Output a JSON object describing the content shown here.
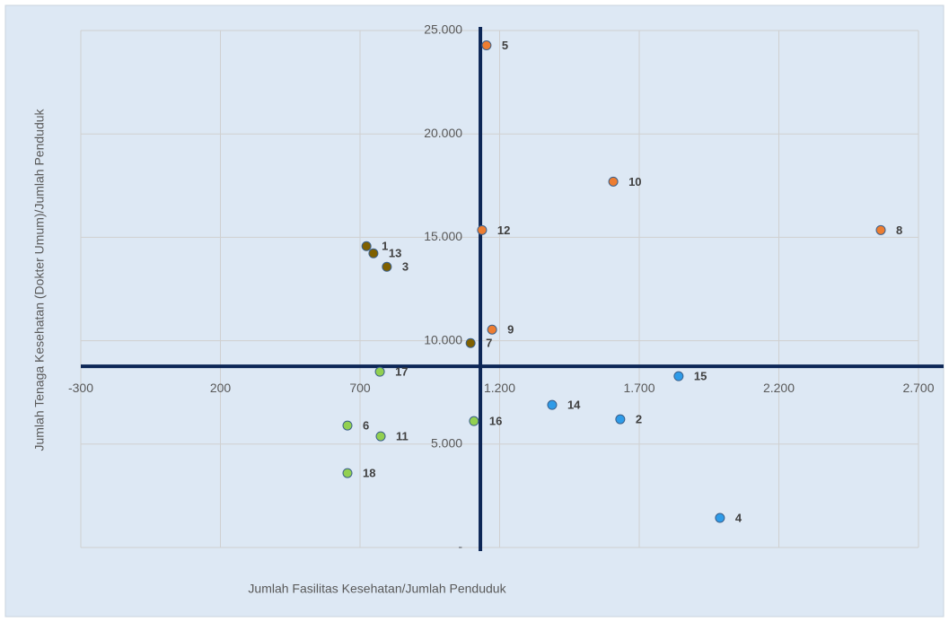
{
  "chart_data": {
    "type": "scatter",
    "x_axis_label": "Jumlah Fasilitas Kesehatan/Jumlah Penduduk",
    "y_axis_label": "Jumlah Tenaga Kesehatan (Dokter Umum)/Jumlah Penduduk",
    "labels": [
      "5",
      "10",
      "12",
      "8",
      "1",
      "13",
      "3",
      "9",
      "7",
      "17",
      "15",
      "14",
      "2",
      "16",
      "6",
      "11",
      "18",
      "4"
    ],
    "x": [
      1153,
      1607,
      1137,
      2565,
      723,
      748,
      796,
      1173,
      1096,
      771,
      1841,
      1388,
      1632,
      1108,
      655,
      774,
      655,
      1989
    ],
    "values": [
      24284,
      17693,
      15351,
      15351,
      14571,
      14224,
      13573,
      10538,
      9887,
      8500,
      8283,
      6895,
      6201,
      6114,
      5898,
      5377,
      3599,
      1431
    ],
    "colors": [
      "#ed7d31",
      "#ed7d31",
      "#ed7d31",
      "#ed7d31",
      "#7f6000",
      "#7f6000",
      "#7f6000",
      "#ed7d31",
      "#7f6000",
      "#92d050",
      "#2e9be8",
      "#2e9be8",
      "#2e9be8",
      "#92d050",
      "#92d050",
      "#92d050",
      "#92d050",
      "#2e9be8"
    ],
    "xlim": [
      -300,
      2700
    ],
    "xticks": [
      -300,
      200,
      700,
      {
        "value": 1200,
        "label": "1.200"
      },
      {
        "value": 1700,
        "label": "1.700"
      },
      {
        "value": 2200,
        "label": "2.200"
      },
      {
        "value": 2700,
        "label": "2.700"
      }
    ],
    "ylim": [
      0,
      25000
    ],
    "yticks": [
      {
        "value": 0,
        "label": "-"
      },
      {
        "value": 5000,
        "label": "5.000"
      },
      {
        "value": 10000,
        "label": "10.000"
      },
      {
        "value": 15000,
        "label": "15.000"
      },
      {
        "value": 20000,
        "label": "20.000"
      },
      {
        "value": 25000,
        "label": "25.000"
      }
    ],
    "x_cross": 1131,
    "y_cross": 8760,
    "grid": true
  }
}
